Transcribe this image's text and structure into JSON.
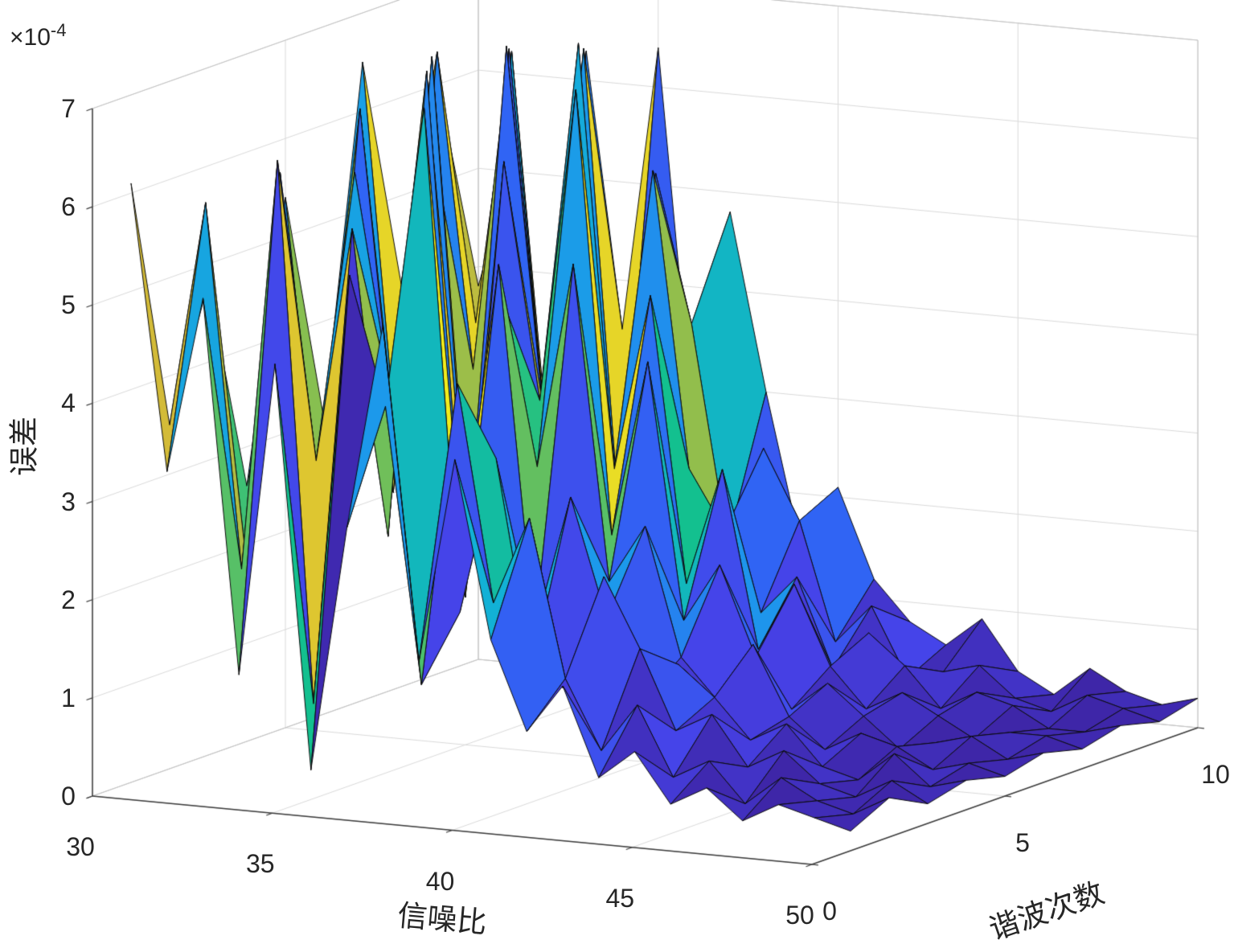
{
  "chart_data": {
    "type": "surface",
    "title": "",
    "xlabel": "信噪比",
    "ylabel": "谐波次数",
    "zlabel": "误差",
    "z_exponent_base": "×10",
    "z_exponent": "-4",
    "z_units_multiplier": 0.0001,
    "xlim": [
      30,
      50
    ],
    "ylim": [
      0,
      10
    ],
    "zlim": [
      0,
      7
    ],
    "x_ticks": [
      30,
      35,
      40,
      45,
      50
    ],
    "y_ticks": [
      0,
      5,
      10
    ],
    "z_ticks": [
      0,
      1,
      2,
      3,
      4,
      5,
      6,
      7
    ],
    "grid": true,
    "x": [
      30,
      31,
      32,
      33,
      34,
      35,
      36,
      37,
      38,
      39,
      40,
      41,
      42,
      43,
      44,
      45,
      46,
      47,
      48,
      49,
      50
    ],
    "y": [
      1,
      2,
      3,
      4,
      5,
      6,
      7,
      8,
      9,
      10
    ],
    "z": [
      [
        6.1,
        3.2,
        5.0,
        1.2,
        4.4,
        0.3,
        2.8,
        4.9,
        1.5,
        3.6,
        1.8,
        0.9,
        1.4,
        0.5,
        0.8,
        0.3,
        0.5,
        0.2,
        0.4,
        0.3,
        0.2
      ],
      [
        3.5,
        5.8,
        2.1,
        6.3,
        0.8,
        5.2,
        3.9,
        1.1,
        4.2,
        2.0,
        2.9,
        1.3,
        0.6,
        1.1,
        0.4,
        0.6,
        0.2,
        0.5,
        0.3,
        0.2,
        0.4
      ],
      [
        4.8,
        2.2,
        6.0,
        3.1,
        5.5,
        2.4,
        6.8,
        1.7,
        3.3,
        1.2,
        1.0,
        2.2,
        1.5,
        0.7,
        0.9,
        0.4,
        0.6,
        0.3,
        0.2,
        0.4,
        0.2
      ],
      [
        2.6,
        4.4,
        1.8,
        5.9,
        3.7,
        7.0,
        2.2,
        5.1,
        1.4,
        2.8,
        1.6,
        0.8,
        1.2,
        0.9,
        0.5,
        0.7,
        0.3,
        0.2,
        0.5,
        0.2,
        0.3
      ],
      [
        5.4,
        1.9,
        3.9,
        2.5,
        6.4,
        1.5,
        4.6,
        2.9,
        5.0,
        1.8,
        2.4,
        1.1,
        0.7,
        1.3,
        0.6,
        0.3,
        0.5,
        0.4,
        0.2,
        0.3,
        0.2
      ],
      [
        3.0,
        6.2,
        2.7,
        6.8,
        1.9,
        5.8,
        3.4,
        6.6,
        2.1,
        3.9,
        1.3,
        1.9,
        1.0,
        0.5,
        0.8,
        0.5,
        0.2,
        0.3,
        0.4,
        0.2,
        0.3
      ],
      [
        6.5,
        2.4,
        5.6,
        1.6,
        6.8,
        3.2,
        6.9,
        2.6,
        4.4,
        1.5,
        2.7,
        0.9,
        1.6,
        0.8,
        0.4,
        0.6,
        0.4,
        0.2,
        0.3,
        0.3,
        0.2
      ],
      [
        4.1,
        6.5,
        3.3,
        6.6,
        2.8,
        6.1,
        1.8,
        5.5,
        2.5,
        1.9,
        1.1,
        1.5,
        0.6,
        1.0,
        0.7,
        0.3,
        0.5,
        0.4,
        0.2,
        0.2,
        0.3
      ],
      [
        5.9,
        3.6,
        6.4,
        2.3,
        6.5,
        1.7,
        5.3,
        3.8,
        1.6,
        2.6,
        1.9,
        0.7,
        1.1,
        0.4,
        0.5,
        0.6,
        0.3,
        0.2,
        0.4,
        0.3,
        0.2
      ],
      [
        3.8,
        5.2,
        2.0,
        6.3,
        3.5,
        6.4,
        2.5,
        4.8,
        3.0,
        1.4,
        2.1,
        1.2,
        0.8,
        0.6,
        0.9,
        0.4,
        0.2,
        0.5,
        0.3,
        0.2,
        0.3
      ]
    ],
    "style": {
      "background": "#ffffff",
      "grid_color": "#d9d9d9",
      "wall_edge_color": "#c2c2c2",
      "axis_color": "#3b3b3b",
      "tick_text_color": "#262626",
      "mesh_edge_color": "#0a0a0a",
      "colormap": "parula",
      "colormap_stops": [
        "#3e26a8",
        "#4642e8",
        "#3064f4",
        "#1d98ec",
        "#12b1d6",
        "#13c18b",
        "#7cbf53",
        "#d8bb36",
        "#f9fb15"
      ]
    }
  }
}
